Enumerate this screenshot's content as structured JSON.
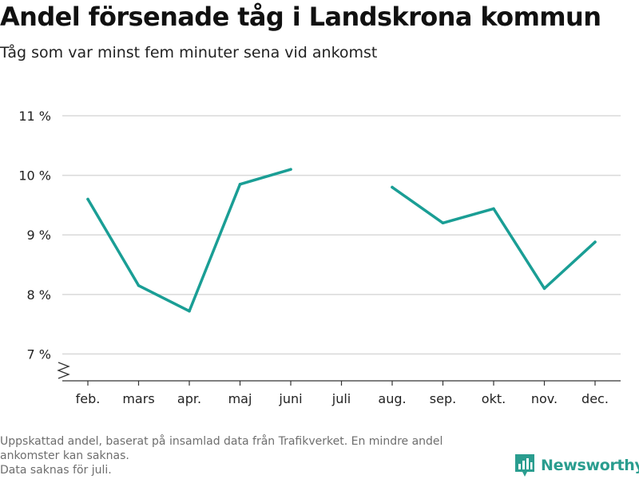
{
  "header": {
    "title": "Andel försenade tåg i Landskrona kommun",
    "subtitle": "Tåg som var minst fem minuter sena vid ankomst"
  },
  "chart_data": {
    "type": "line",
    "title": "Andel försenade tåg i Landskrona kommun",
    "subtitle": "Tåg som var minst fem minuter sena vid ankomst",
    "categories": [
      "feb.",
      "mars",
      "apr.",
      "maj",
      "juni",
      "juli",
      "aug.",
      "sep.",
      "okt.",
      "nov.",
      "dec."
    ],
    "series": [
      {
        "values": [
          9.6,
          8.15,
          7.72,
          9.85,
          10.1,
          null,
          9.8,
          9.2,
          9.44,
          8.1,
          8.88
        ],
        "color": "#1a9e95"
      }
    ],
    "yticks": [
      7,
      8,
      9,
      10,
      11
    ],
    "ytick_labels": [
      "7 %",
      "8 %",
      "9 %",
      "10 %",
      "11 %"
    ],
    "ylim": [
      6.55,
      11
    ],
    "y_axis_break": true,
    "grid": true,
    "legend": "none",
    "xlabel": "",
    "ylabel": ""
  },
  "footer": {
    "note_line1": "Uppskattad andel, baserat på insamlad data från Trafikverket. En mindre andel",
    "note_line2": "ankomster kan saknas.",
    "note_line3": "Data saknas för juli.",
    "brand": "Newsworthy",
    "brand_icon": "newsworthy-logo-icon",
    "brand_color": "#2a9d8f"
  }
}
